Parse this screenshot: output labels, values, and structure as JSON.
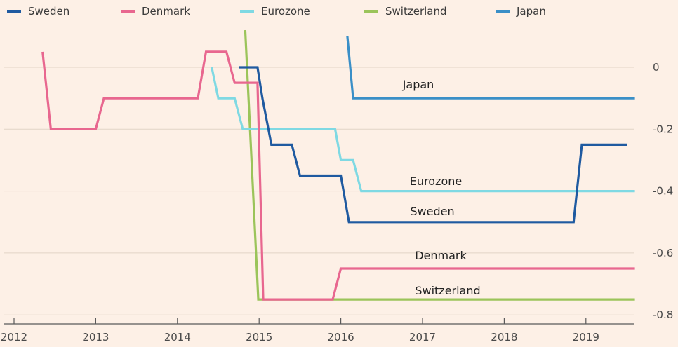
{
  "chart_data": {
    "type": "line",
    "title": "",
    "xlabel": "",
    "ylabel": "",
    "x_ticks": [
      "2012",
      "2013",
      "2014",
      "2015",
      "2016",
      "2017",
      "2018",
      "2019"
    ],
    "y_ticks": [
      "0",
      "-0.2",
      "-0.4",
      "-0.6",
      "-0.8"
    ],
    "xlim": [
      2011.9,
      2019.6
    ],
    "ylim": [
      -0.8,
      0.12
    ],
    "grid": "horizontal",
    "legend_position": "top",
    "series": [
      {
        "name": "Sweden",
        "label": "Sweden",
        "color": "#1f5aa0",
        "points": [
          [
            2014.75,
            0
          ],
          [
            2014.98,
            0
          ],
          [
            2015.04,
            -0.1
          ],
          [
            2015.15,
            -0.25
          ],
          [
            2015.4,
            -0.25
          ],
          [
            2015.5,
            -0.35
          ],
          [
            2016.0,
            -0.35
          ],
          [
            2016.1,
            -0.5
          ],
          [
            2018.85,
            -0.5
          ],
          [
            2018.95,
            -0.25
          ],
          [
            2019.5,
            -0.25
          ]
        ]
      },
      {
        "name": "Denmark",
        "label": "Denmark",
        "color": "#e8678f",
        "points": [
          [
            2012.35,
            0.05
          ],
          [
            2012.45,
            -0.2
          ],
          [
            2013.0,
            -0.2
          ],
          [
            2013.1,
            -0.1
          ],
          [
            2014.25,
            -0.1
          ],
          [
            2014.35,
            0.05
          ],
          [
            2014.6,
            0.05
          ],
          [
            2014.7,
            -0.05
          ],
          [
            2014.98,
            -0.05
          ],
          [
            2015.05,
            -0.75
          ],
          [
            2015.9,
            -0.75
          ],
          [
            2016.0,
            -0.65
          ],
          [
            2019.6,
            -0.65
          ]
        ]
      },
      {
        "name": "Eurozone",
        "label": "Eurozone",
        "color": "#7fd9e3",
        "points": [
          [
            2014.42,
            0
          ],
          [
            2014.5,
            -0.1
          ],
          [
            2014.7,
            -0.1
          ],
          [
            2014.8,
            -0.2
          ],
          [
            2015.93,
            -0.2
          ],
          [
            2016.0,
            -0.3
          ],
          [
            2016.15,
            -0.3
          ],
          [
            2016.25,
            -0.4
          ],
          [
            2019.6,
            -0.4
          ]
        ]
      },
      {
        "name": "Switzerland",
        "label": "Switzerland",
        "color": "#9bc45a",
        "points": [
          [
            2014.83,
            0.12
          ],
          [
            2014.99,
            -0.75
          ],
          [
            2019.6,
            -0.75
          ]
        ]
      },
      {
        "name": "Japan",
        "label": "Japan",
        "color": "#3a8fc7",
        "points": [
          [
            2016.08,
            0.1
          ],
          [
            2016.15,
            -0.1
          ],
          [
            2019.6,
            -0.1
          ]
        ]
      }
    ]
  }
}
